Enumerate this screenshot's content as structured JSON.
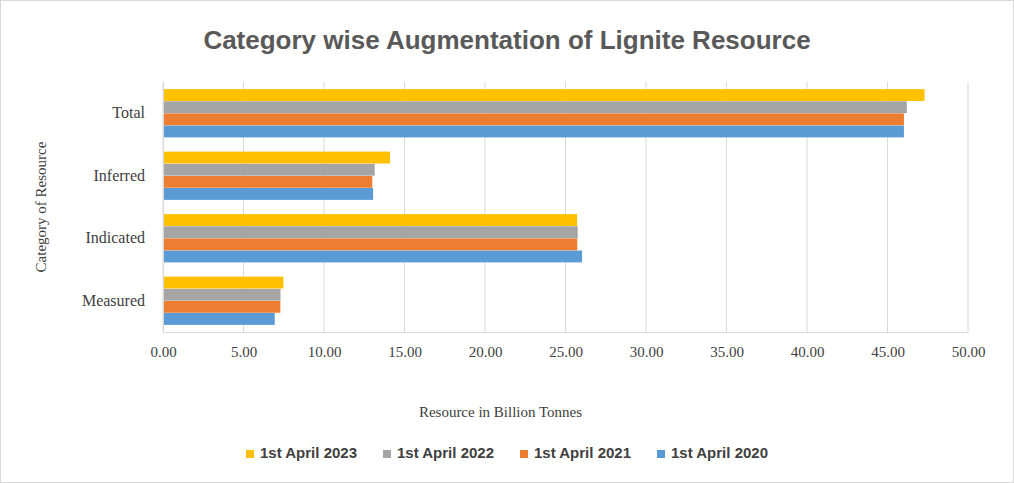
{
  "chart_data": {
    "type": "bar",
    "orientation": "horizontal",
    "title": "Category wise Augmentation of Lignite Resource",
    "x_label": "Resource in Billion Tonnes",
    "y_label": "Category of Resource",
    "categories": [
      "Measured",
      "Indicated",
      "Inferred",
      "Total"
    ],
    "series": [
      {
        "name": "1st April 2020",
        "color": "#5b9bd5",
        "values": [
          6.94,
          26.03,
          13.05,
          46.02
        ]
      },
      {
        "name": "1st April 2021",
        "color": "#ed7d31",
        "values": [
          7.29,
          25.73,
          13.0,
          46.02
        ]
      },
      {
        "name": "1st April 2022",
        "color": "#a5a5a5",
        "values": [
          7.3,
          25.76,
          13.15,
          46.2
        ]
      },
      {
        "name": "1st April 2023",
        "color": "#ffc000",
        "values": [
          7.48,
          25.72,
          14.1,
          47.3
        ]
      }
    ],
    "xlim": [
      0,
      50
    ],
    "xticks": [
      {
        "value": 0,
        "label": "0.00"
      },
      {
        "value": 5,
        "label": "5.00"
      },
      {
        "value": 10,
        "label": "10.00"
      },
      {
        "value": 15,
        "label": "15.00"
      },
      {
        "value": 20,
        "label": "20.00"
      },
      {
        "value": 25,
        "label": "25.00"
      },
      {
        "value": 30,
        "label": "30.00"
      },
      {
        "value": 35,
        "label": "35.00"
      },
      {
        "value": 40,
        "label": "40.00"
      },
      {
        "value": 45,
        "label": "45.00"
      },
      {
        "value": 50,
        "label": "50.00"
      }
    ],
    "grid": true,
    "legend": "bottom"
  }
}
